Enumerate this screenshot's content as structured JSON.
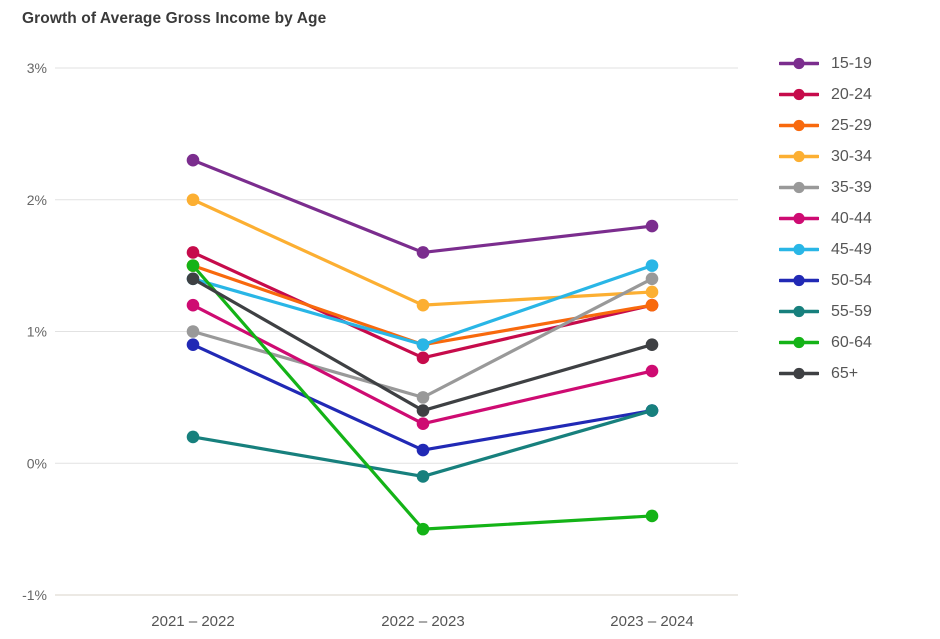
{
  "title": "Growth of Average Gross Income by Age",
  "chart_data": {
    "type": "line",
    "title": "Growth of Average Gross Income by Age",
    "xlabel": "",
    "ylabel": "",
    "categories": [
      "2021 – 2022",
      "2022 – 2023",
      "2023 – 2024"
    ],
    "series": [
      {
        "name": "15-19",
        "color": "#7b2d8e",
        "values": [
          2.3,
          1.6,
          1.8
        ]
      },
      {
        "name": "20-24",
        "color": "#c60b4b",
        "values": [
          1.6,
          0.8,
          1.2
        ]
      },
      {
        "name": "25-29",
        "color": "#f8690d",
        "values": [
          1.5,
          0.9,
          1.2
        ]
      },
      {
        "name": "30-34",
        "color": "#fcaf32",
        "values": [
          2.0,
          1.2,
          1.3
        ]
      },
      {
        "name": "35-39",
        "color": "#999999",
        "values": [
          1.0,
          0.5,
          1.4
        ]
      },
      {
        "name": "40-44",
        "color": "#ce0b72",
        "values": [
          1.2,
          0.3,
          0.7
        ]
      },
      {
        "name": "45-49",
        "color": "#29b6e6",
        "values": [
          1.4,
          0.9,
          1.5
        ]
      },
      {
        "name": "50-54",
        "color": "#2129b5",
        "values": [
          0.9,
          0.1,
          0.4
        ]
      },
      {
        "name": "55-59",
        "color": "#17807d",
        "values": [
          0.2,
          -0.1,
          0.4
        ]
      },
      {
        "name": "60-64",
        "color": "#14b317",
        "values": [
          1.5,
          -0.5,
          -0.4
        ]
      },
      {
        "name": "65+",
        "color": "#3e4043",
        "values": [
          1.4,
          0.4,
          0.9
        ]
      }
    ],
    "ylim": [
      -1,
      3
    ],
    "yticks": [
      {
        "value": 3,
        "label": "3%"
      },
      {
        "value": 2,
        "label": "2%"
      },
      {
        "value": 1,
        "label": "1%"
      },
      {
        "value": 0,
        "label": "0%"
      },
      {
        "value": -1,
        "label": "-1%"
      }
    ],
    "grid": true,
    "legend_position": "right",
    "colors": {
      "grid_line": "#e2e2e2",
      "baseline": "#d9d3ca",
      "tick_text": "#666666",
      "category_text": "#555555",
      "title_text": "#3a3a3a",
      "legend_text": "#565656"
    }
  }
}
